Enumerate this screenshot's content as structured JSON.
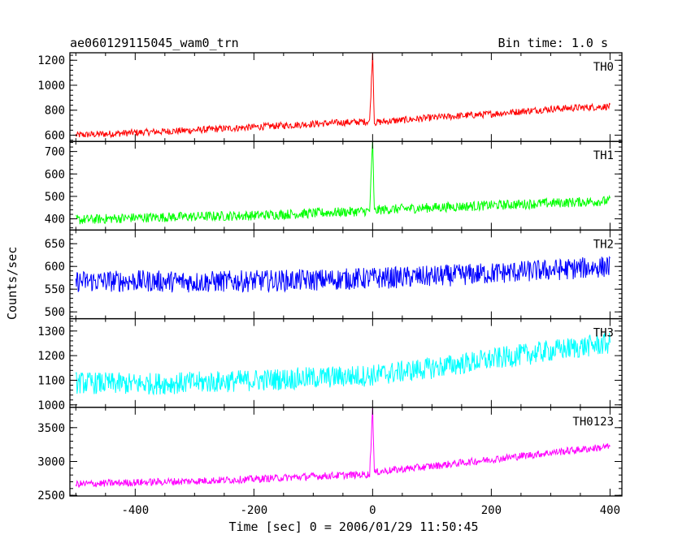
{
  "chart_data": {
    "title": "ae060129115045_wam0_trn",
    "bin_label": "Bin time: 1.0 s",
    "xlabel": "Time [sec] 0 = 2006/01/29 11:50:45",
    "ylabel": "Counts/sec",
    "xlim": [
      -510,
      420
    ],
    "xticks": [
      -400,
      -200,
      0,
      200,
      400
    ],
    "panels": [
      {
        "type": "line",
        "name": "TH0",
        "color": "#ff0000",
        "ylim": [
          550,
          1260
        ],
        "yticks": [
          600,
          800,
          1000,
          1200
        ],
        "x": [
          -500,
          -400,
          -300,
          -200,
          -100,
          -5,
          0,
          3,
          10,
          100,
          200,
          300,
          400
        ],
        "y": [
          600,
          620,
          640,
          665,
          690,
          710,
          1260,
          700,
          705,
          740,
          770,
          810,
          830
        ],
        "noise": 28
      },
      {
        "type": "line",
        "name": "TH1",
        "color": "#00ff00",
        "ylim": [
          350,
          745
        ],
        "yticks": [
          400,
          500,
          600,
          700
        ],
        "x": [
          -500,
          -400,
          -300,
          -200,
          -100,
          -5,
          0,
          3,
          10,
          100,
          200,
          300,
          400
        ],
        "y": [
          395,
          405,
          410,
          415,
          425,
          435,
          745,
          430,
          440,
          450,
          460,
          470,
          480
        ],
        "noise": 22
      },
      {
        "type": "line",
        "name": "TH2",
        "color": "#0000ff",
        "ylim": [
          485,
          680
        ],
        "yticks": [
          500,
          550,
          600,
          650
        ],
        "x": [
          -500,
          -400,
          -300,
          -200,
          -100,
          0,
          100,
          200,
          300,
          400
        ],
        "y": [
          567,
          568,
          566,
          568,
          570,
          574,
          578,
          585,
          592,
          600
        ],
        "noise": 24
      },
      {
        "type": "line",
        "name": "TH3",
        "color": "#00ffff",
        "ylim": [
          990,
          1350
        ],
        "yticks": [
          1000,
          1100,
          1200,
          1300
        ],
        "x": [
          -500,
          -400,
          -300,
          -200,
          -100,
          0,
          100,
          200,
          300,
          400
        ],
        "y": [
          1090,
          1085,
          1090,
          1100,
          1110,
          1120,
          1150,
          1185,
          1220,
          1250
        ],
        "noise": 45
      },
      {
        "type": "line",
        "name": "TH0123",
        "color": "#ff00ff",
        "ylim": [
          2490,
          3800
        ],
        "yticks": [
          2500,
          3000,
          3500
        ],
        "x": [
          -500,
          -400,
          -300,
          -200,
          -100,
          -5,
          0,
          3,
          10,
          100,
          200,
          300,
          400
        ],
        "y": [
          2665,
          2690,
          2710,
          2740,
          2780,
          2810,
          3800,
          2830,
          2850,
          2930,
          3030,
          3130,
          3220
        ],
        "noise": 55
      }
    ]
  }
}
